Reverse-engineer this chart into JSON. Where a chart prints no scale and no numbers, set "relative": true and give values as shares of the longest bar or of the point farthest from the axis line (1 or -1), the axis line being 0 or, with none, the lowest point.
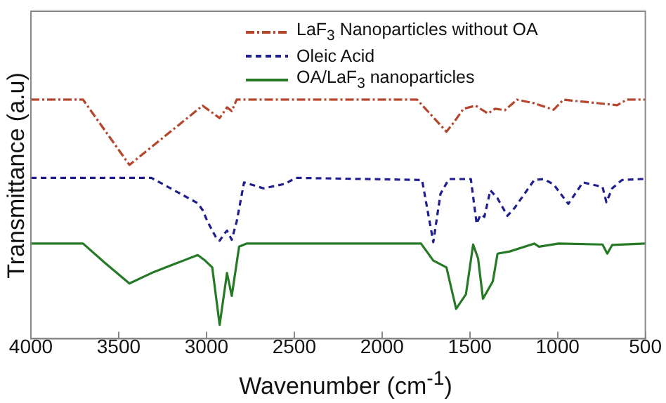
{
  "chart_data": {
    "type": "line",
    "relative": true,
    "xlabel": "Wavenumber (cm$^{-1}$)",
    "ylabel": "Transmittance (a.u)",
    "xlim": [
      4000,
      500
    ],
    "xticks": [
      4000,
      3500,
      3000,
      2500,
      2000,
      1500,
      1000,
      500
    ],
    "grid": false,
    "legend": "top right",
    "marker": "none",
    "series": [
      {
        "name": "LaF$_{3}$ Nanoparticles without OA",
        "color": "#b5452c",
        "line_style": "dashdot",
        "x": [
          4000,
          3703,
          3439,
          3022,
          2925,
          2883,
          2856,
          2828,
          1800,
          1633,
          1592,
          1536,
          1467,
          1397,
          1356,
          1300,
          1231,
          1133,
          1022,
          967,
          661,
          606,
          500
        ],
        "values": [
          1,
          1,
          0.727,
          0.975,
          0.923,
          0.968,
          0.952,
          1,
          1,
          0.866,
          0.904,
          0.962,
          0.975,
          0.942,
          0.962,
          0.956,
          1,
          0.985,
          0.958,
          1,
          0.977,
          1,
          1
        ]
      },
      {
        "name": "Oleic Acid",
        "color": "#1f1f8f",
        "line_style": "dashed",
        "x": [
          4000,
          3314,
          3050,
          3022,
          2994,
          2939,
          2925,
          2897,
          2883,
          2856,
          2828,
          2786,
          2675,
          2550,
          2494,
          1772,
          1708,
          1667,
          1619,
          1494,
          1461,
          1439,
          1417,
          1383,
          1342,
          1286,
          1244,
          1133,
          1078,
          1022,
          939,
          856,
          744,
          722,
          689,
          633,
          522,
          500
        ],
        "values": [
          0.673,
          0.673,
          0.567,
          0.538,
          0.49,
          0.414,
          0.41,
          0.44,
          0.452,
          0.414,
          0.49,
          0.654,
          0.629,
          0.648,
          0.673,
          0.664,
          0.404,
          0.606,
          0.668,
          0.668,
          0.481,
          0.519,
          0.51,
          0.621,
          0.587,
          0.514,
          0.548,
          0.664,
          0.668,
          0.645,
          0.564,
          0.654,
          0.635,
          0.571,
          0.629,
          0.664,
          0.668,
          0.668
        ]
      },
      {
        "name": "OA/LaF$_{3}$ nanoparticles",
        "color": "#267a26",
        "line_style": "solid",
        "x": [
          4000,
          3703,
          3578,
          3439,
          3300,
          3050,
          3008,
          2967,
          2925,
          2883,
          2856,
          2814,
          2772,
          1778,
          1708,
          1633,
          1578,
          1522,
          1481,
          1453,
          1425,
          1369,
          1342,
          1272,
          1133,
          1106,
          994,
          744,
          717,
          689,
          500
        ],
        "values": [
          0.398,
          0.398,
          0.317,
          0.231,
          0.279,
          0.35,
          0.327,
          0.298,
          0.058,
          0.275,
          0.179,
          0.385,
          0.398,
          0.398,
          0.327,
          0.298,
          0.125,
          0.186,
          0.394,
          0.336,
          0.167,
          0.24,
          0.356,
          0.365,
          0.398,
          0.385,
          0.398,
          0.394,
          0.356,
          0.392,
          0.398
        ]
      }
    ]
  }
}
